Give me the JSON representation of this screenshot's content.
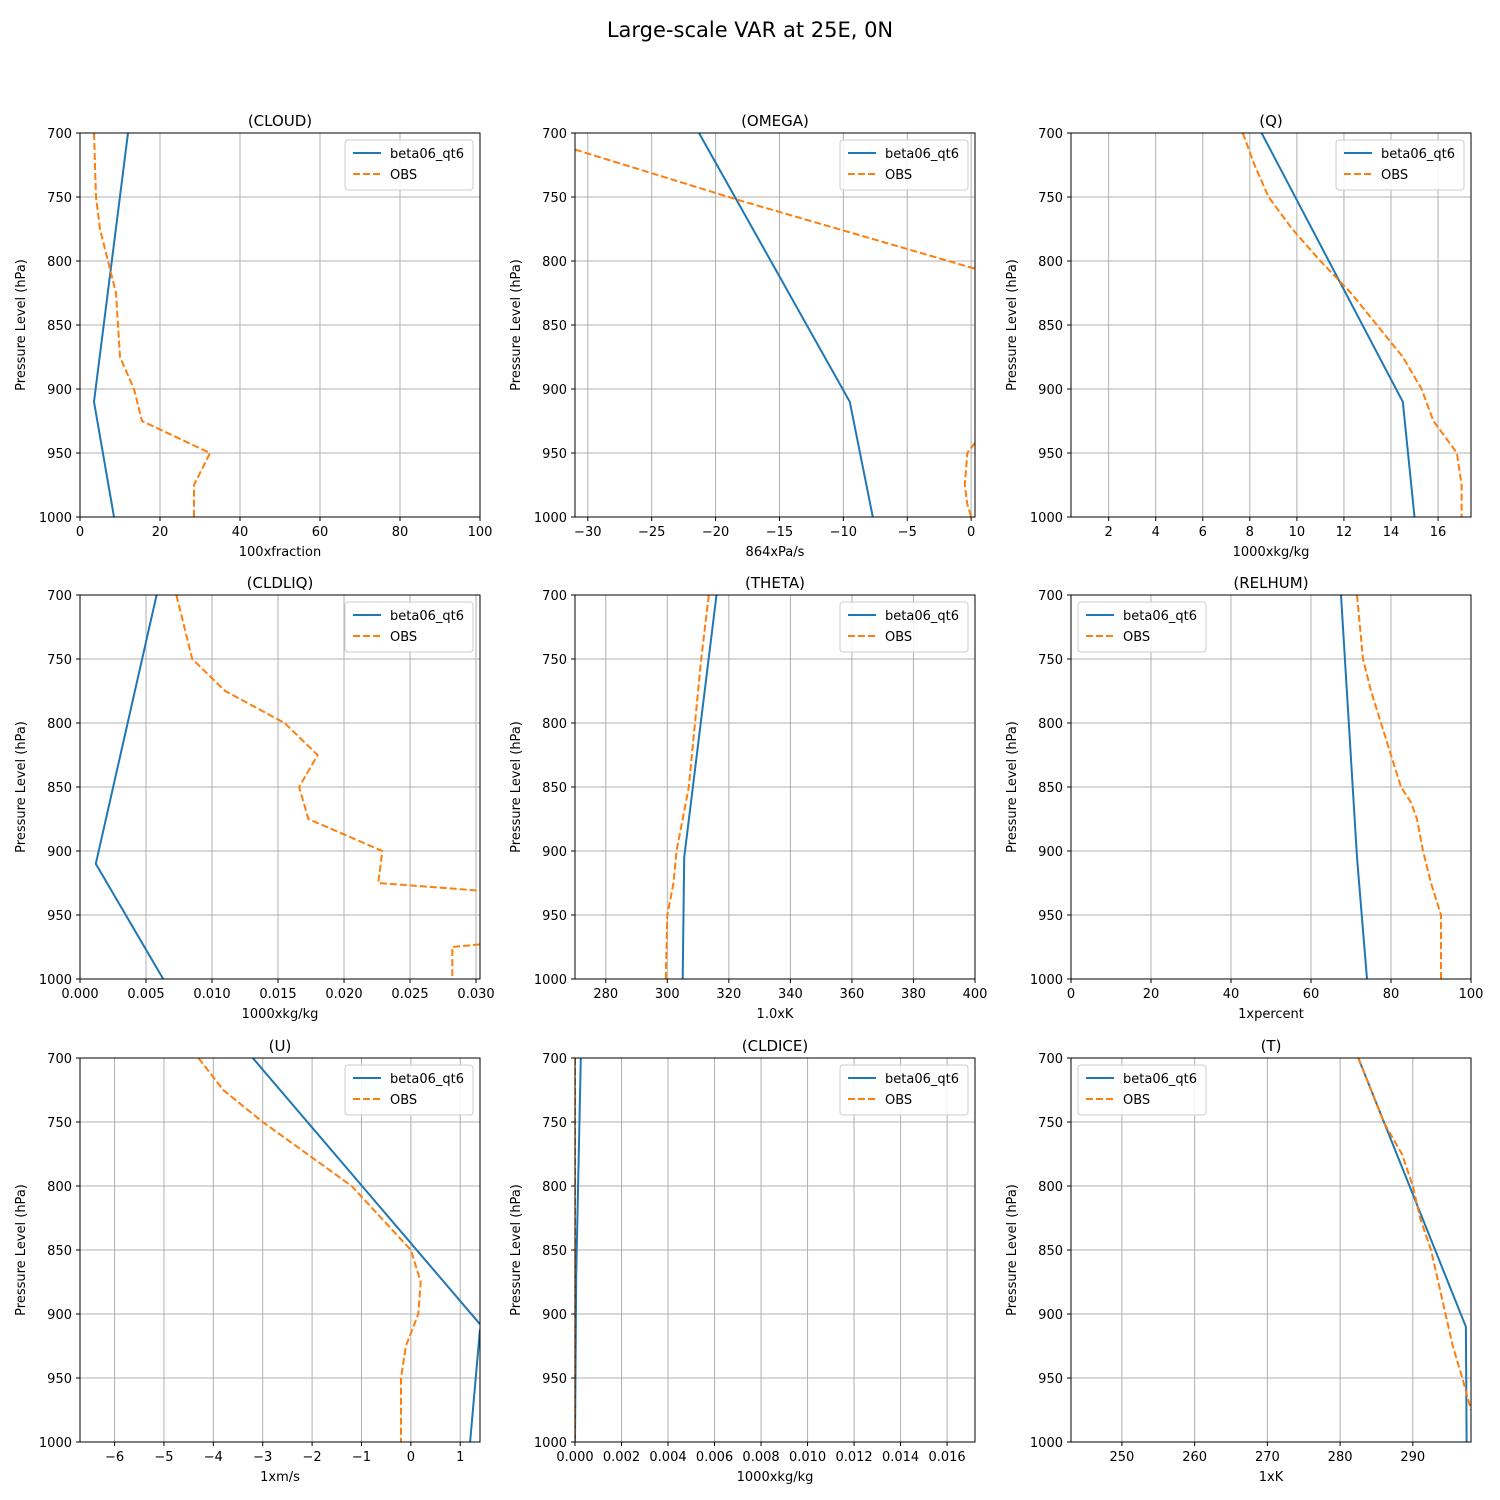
{
  "figure_title": "Large-scale VAR at 25E, 0N",
  "colors": {
    "model": "#1f77b4",
    "obs": "#ff7f0e",
    "grid": "#b0b0b0"
  },
  "chart_data": [
    {
      "type": "line",
      "title": "(CLOUD)",
      "xlabel": "100xfraction",
      "ylabel": "Pressure Level (hPa)",
      "xlim": [
        0,
        100
      ],
      "ylim": [
        1000,
        700
      ],
      "xticks": [
        0,
        20,
        40,
        60,
        80,
        100
      ],
      "xtick_labels": [
        "0",
        "20",
        "40",
        "60",
        "80",
        "100"
      ],
      "yticks": [
        700,
        750,
        800,
        850,
        900,
        950,
        1000
      ],
      "legend": "upper right",
      "grid": true,
      "series": [
        {
          "name": "beta06_qt6",
          "style": "solid",
          "x": [
            12,
            3.5,
            8.5
          ],
          "y": [
            700,
            910,
            1000
          ]
        },
        {
          "name": "OBS",
          "style": "dashed",
          "x": [
            3.5,
            4,
            5,
            7,
            9,
            9.5,
            10,
            13.5,
            15.5,
            32.5,
            28.5,
            28.5
          ],
          "y": [
            700,
            750,
            775,
            800,
            825,
            850,
            875,
            900,
            925,
            950,
            975,
            1000
          ]
        }
      ]
    },
    {
      "type": "line",
      "title": "(OMEGA)",
      "xlabel": "864xPa/s",
      "ylabel": "Pressure Level (hPa)",
      "xlim": [
        -31,
        0.3
      ],
      "ylim": [
        1000,
        700
      ],
      "xticks": [
        -30,
        -25,
        -20,
        -15,
        -10,
        -5,
        0
      ],
      "xtick_labels": [
        "−30",
        "−25",
        "−20",
        "−15",
        "−10",
        "−5",
        "0"
      ],
      "yticks": [
        700,
        750,
        800,
        850,
        900,
        950,
        1000
      ],
      "legend": "upper right",
      "grid": true,
      "series": [
        {
          "name": "beta06_qt6",
          "style": "solid",
          "x": [
            -21.3,
            -9.5,
            -7.7
          ],
          "y": [
            700,
            910,
            1000
          ]
        },
        {
          "name": "OBS",
          "style": "dashed",
          "x": [
            -31,
            -18,
            0.3,
            null,
            0.3,
            -0.3,
            -0.5,
            -0.3,
            0
          ],
          "y": [
            713,
            753,
            806,
            null,
            942,
            950,
            975,
            990,
            1000
          ]
        }
      ]
    },
    {
      "type": "line",
      "title": "(Q)",
      "xlabel": "1000xkg/kg",
      "ylabel": "Pressure Level (hPa)",
      "xlim": [
        0.4,
        17.4
      ],
      "ylim": [
        1000,
        700
      ],
      "xticks": [
        2,
        4,
        6,
        8,
        10,
        12,
        14,
        16
      ],
      "xtick_labels": [
        "2",
        "4",
        "6",
        "8",
        "10",
        "12",
        "14",
        "16"
      ],
      "yticks": [
        700,
        750,
        800,
        850,
        900,
        950,
        1000
      ],
      "legend": "upper right",
      "grid": true,
      "series": [
        {
          "name": "beta06_qt6",
          "style": "solid",
          "x": [
            8.5,
            14.5,
            15
          ],
          "y": [
            700,
            910,
            1000
          ]
        },
        {
          "name": "OBS",
          "style": "dashed",
          "x": [
            7.7,
            8.2,
            8.8,
            9.8,
            11,
            12.3,
            13.4,
            14.5,
            15.3,
            15.8,
            16.8,
            17,
            17
          ],
          "y": [
            700,
            725,
            750,
            775,
            800,
            825,
            850,
            875,
            900,
            925,
            950,
            975,
            1000
          ]
        }
      ]
    },
    {
      "type": "line",
      "title": "(CLDLIQ)",
      "xlabel": "1000xkg/kg",
      "ylabel": "Pressure Level (hPa)",
      "xlim": [
        0,
        0.0303
      ],
      "ylim": [
        1000,
        700
      ],
      "xticks": [
        0,
        0.005,
        0.01,
        0.015,
        0.02,
        0.025,
        0.03
      ],
      "xtick_labels": [
        "0.000",
        "0.005",
        "0.010",
        "0.015",
        "0.020",
        "0.025",
        "0.030"
      ],
      "yticks": [
        700,
        750,
        800,
        850,
        900,
        950,
        1000
      ],
      "legend": "upper right",
      "grid": true,
      "series": [
        {
          "name": "beta06_qt6",
          "style": "solid",
          "x": [
            0.0058,
            0.0012,
            0.0063
          ],
          "y": [
            700,
            910,
            1000
          ]
        },
        {
          "name": "OBS",
          "style": "dashed",
          "x": [
            0.0073,
            0.0085,
            0.011,
            0.0155,
            0.018,
            0.0166,
            0.0173,
            0.0229,
            0.0226,
            0.0303,
            null,
            0.0303,
            0.0282,
            0.0282
          ],
          "y": [
            700,
            750,
            775,
            800,
            825,
            850,
            875,
            900,
            925,
            931,
            null,
            973,
            975,
            1000
          ]
        }
      ]
    },
    {
      "type": "line",
      "title": "(THETA)",
      "xlabel": "1.0xK",
      "ylabel": "Pressure Level (hPa)",
      "xlim": [
        270,
        400
      ],
      "ylim": [
        1000,
        700
      ],
      "xticks": [
        280,
        300,
        320,
        340,
        360,
        380,
        400
      ],
      "xtick_labels": [
        "280",
        "300",
        "320",
        "340",
        "360",
        "380",
        "400"
      ],
      "yticks": [
        700,
        750,
        800,
        850,
        900,
        950,
        1000
      ],
      "legend": "upper right",
      "grid": true,
      "series": [
        {
          "name": "beta06_qt6",
          "style": "solid",
          "x": [
            316,
            305.5,
            305
          ],
          "y": [
            700,
            905,
            1000
          ]
        },
        {
          "name": "OBS",
          "style": "dashed",
          "x": [
            313.5,
            311,
            309,
            307,
            305,
            303,
            302,
            300,
            299.5
          ],
          "y": [
            700,
            750,
            800,
            850,
            875,
            900,
            925,
            950,
            1000
          ]
        }
      ]
    },
    {
      "type": "line",
      "title": "(RELHUM)",
      "xlabel": "1xpercent",
      "ylabel": "Pressure Level (hPa)",
      "xlim": [
        0,
        100
      ],
      "ylim": [
        1000,
        700
      ],
      "xticks": [
        0,
        20,
        40,
        60,
        80,
        100
      ],
      "xtick_labels": [
        "0",
        "20",
        "40",
        "60",
        "80",
        "100"
      ],
      "yticks": [
        700,
        750,
        800,
        850,
        900,
        950,
        1000
      ],
      "legend": "upper left",
      "grid": true,
      "series": [
        {
          "name": "beta06_qt6",
          "style": "solid",
          "x": [
            67.5,
            71.5,
            74
          ],
          "y": [
            700,
            905,
            1000
          ]
        },
        {
          "name": "OBS",
          "style": "dashed",
          "x": [
            71.5,
            73,
            75,
            77.5,
            80,
            82.5,
            85,
            86.5,
            88,
            90,
            92.5,
            92.5,
            92.5
          ],
          "y": [
            700,
            750,
            775,
            800,
            825,
            850,
            862,
            875,
            900,
            925,
            950,
            975,
            1000
          ]
        }
      ]
    },
    {
      "type": "line",
      "title": "(U)",
      "xlabel": "1xm/s",
      "ylabel": "Pressure Level (hPa)",
      "xlim": [
        -6.7,
        1.4
      ],
      "ylim": [
        1000,
        700
      ],
      "xticks": [
        -6,
        -5,
        -4,
        -3,
        -2,
        -1,
        0,
        1
      ],
      "xtick_labels": [
        "−6",
        "−5",
        "−4",
        "−3",
        "−2",
        "−1",
        "0",
        "1"
      ],
      "yticks": [
        700,
        750,
        800,
        850,
        900,
        950,
        1000
      ],
      "legend": "upper right",
      "grid": true,
      "series": [
        {
          "name": "beta06_qt6",
          "style": "solid",
          "x": [
            -3.2,
            1.4,
            null,
            1.4,
            1.2
          ],
          "y": [
            700,
            908,
            null,
            912,
            1000
          ]
        },
        {
          "name": "OBS",
          "style": "dashed",
          "x": [
            -4.3,
            -3.8,
            -3.0,
            -2.1,
            -1.2,
            -0.6,
            0,
            0.2,
            0.15,
            -0.1,
            -0.2,
            -0.2,
            -0.2
          ],
          "y": [
            700,
            725,
            750,
            775,
            800,
            825,
            850,
            875,
            900,
            925,
            950,
            975,
            1000
          ]
        }
      ]
    },
    {
      "type": "line",
      "title": "(CLDICE)",
      "xlabel": "1000xkg/kg",
      "ylabel": "Pressure Level (hPa)",
      "xlim": [
        0,
        0.0172
      ],
      "ylim": [
        1000,
        700
      ],
      "xticks": [
        0,
        0.002,
        0.004,
        0.006,
        0.008,
        0.01,
        0.012,
        0.014,
        0.016
      ],
      "xtick_labels": [
        "0.000",
        "0.002",
        "0.004",
        "0.006",
        "0.008",
        "0.010",
        "0.012",
        "0.014",
        "0.016"
      ],
      "yticks": [
        700,
        750,
        800,
        850,
        900,
        950,
        1000
      ],
      "legend": "upper right",
      "grid": true,
      "series": [
        {
          "name": "beta06_qt6",
          "style": "solid",
          "x": [
            0.00025,
            5e-05,
            0
          ],
          "y": [
            700,
            870,
            1000
          ]
        },
        {
          "name": "OBS",
          "style": "dashed",
          "x": [
            0,
            0
          ],
          "y": [
            700,
            1000
          ]
        }
      ]
    },
    {
      "type": "line",
      "title": "(T)",
      "xlabel": "1xK",
      "ylabel": "Pressure Level (hPa)",
      "xlim": [
        243,
        298
      ],
      "ylim": [
        1000,
        700
      ],
      "xticks": [
        250,
        260,
        270,
        280,
        290
      ],
      "xtick_labels": [
        "250",
        "260",
        "270",
        "280",
        "290"
      ],
      "yticks": [
        700,
        750,
        800,
        850,
        900,
        950,
        1000
      ],
      "legend": "upper left",
      "grid": true,
      "series": [
        {
          "name": "beta06_qt6",
          "style": "solid",
          "x": [
            282.5,
            297.3,
            297.4
          ],
          "y": [
            700,
            910,
            1000
          ]
        },
        {
          "name": "OBS",
          "style": "dashed",
          "x": [
            282.5,
            286,
            288.5,
            290,
            291,
            292.5,
            293.5,
            294.5,
            295.5,
            296.8,
            298
          ],
          "y": [
            700,
            750,
            775,
            800,
            825,
            850,
            875,
            900,
            925,
            950,
            975
          ]
        }
      ]
    }
  ]
}
